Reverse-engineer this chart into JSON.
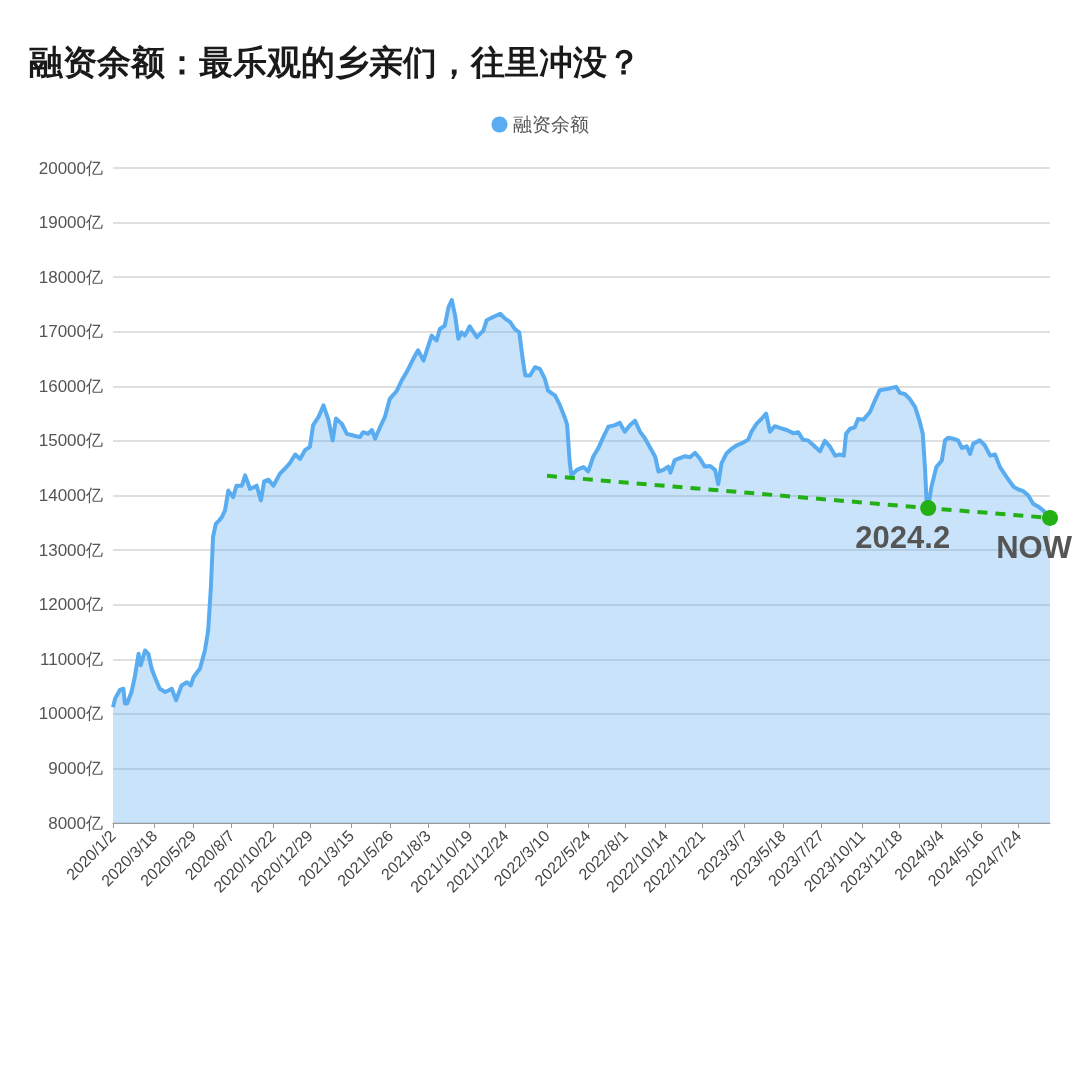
{
  "chart_data": {
    "type": "area",
    "title": "融资余额：最乐观的乡亲们，往里冲没？",
    "legend": "top",
    "grid": "y",
    "marker": "none",
    "xlim": [
      "2020-01-02",
      "2024-09-20"
    ],
    "xticks": [
      {
        "value": "2020-01-02",
        "label": "2020/1/2"
      },
      {
        "value": "2020-03-18",
        "label": "2020/3/18"
      },
      {
        "value": "2020-05-29",
        "label": "2020/5/29"
      },
      {
        "value": "2020-08-07",
        "label": "2020/8/7"
      },
      {
        "value": "2020-10-22",
        "label": "2020/10/22"
      },
      {
        "value": "2020-12-29",
        "label": "2020/12/29"
      },
      {
        "value": "2021-03-15",
        "label": "2021/3/15"
      },
      {
        "value": "2021-05-26",
        "label": "2021/5/26"
      },
      {
        "value": "2021-08-03",
        "label": "2021/8/3"
      },
      {
        "value": "2021-10-19",
        "label": "2021/10/19"
      },
      {
        "value": "2021-12-24",
        "label": "2021/12/24"
      },
      {
        "value": "2022-03-10",
        "label": "2022/3/10"
      },
      {
        "value": "2022-05-24",
        "label": "2022/5/24"
      },
      {
        "value": "2022-08-01",
        "label": "2022/8/1"
      },
      {
        "value": "2022-10-14",
        "label": "2022/10/14"
      },
      {
        "value": "2022-12-21",
        "label": "2022/12/21"
      },
      {
        "value": "2023-03-07",
        "label": "2023/3/7"
      },
      {
        "value": "2023-05-18",
        "label": "2023/5/18"
      },
      {
        "value": "2023-07-27",
        "label": "2023/7/27"
      },
      {
        "value": "2023-10-11",
        "label": "2023/10/11"
      },
      {
        "value": "2023-12-18",
        "label": "2023/12/18"
      },
      {
        "value": "2024-03-04",
        "label": "2024/3/4"
      },
      {
        "value": "2024-05-16",
        "label": "2024/5/16"
      },
      {
        "value": "2024-07-24",
        "label": "2024/7/24"
      }
    ],
    "ylim": [
      8000,
      20000
    ],
    "yticks": [
      {
        "value": 8000,
        "label": "8000亿"
      },
      {
        "value": 9000,
        "label": "9000亿"
      },
      {
        "value": 10000,
        "label": "10000亿"
      },
      {
        "value": 11000,
        "label": "11000亿"
      },
      {
        "value": 12000,
        "label": "12000亿"
      },
      {
        "value": 13000,
        "label": "13000亿"
      },
      {
        "value": 14000,
        "label": "14000亿"
      },
      {
        "value": 15000,
        "label": "15000亿"
      },
      {
        "value": 16000,
        "label": "16000亿"
      },
      {
        "value": 17000,
        "label": "17000亿"
      },
      {
        "value": 18000,
        "label": "18000亿"
      },
      {
        "value": 19000,
        "label": "19000亿"
      },
      {
        "value": 20000,
        "label": "20000亿"
      }
    ],
    "x": [
      "2020-01-02",
      "2020-01-06",
      "2020-01-15",
      "2020-01-21",
      "2020-01-24",
      "2020-01-28",
      "2020-02-05",
      "2020-02-11",
      "2020-02-18",
      "2020-02-22",
      "2020-03-01",
      "2020-03-07",
      "2020-03-13",
      "2020-03-19",
      "2020-03-28",
      "2020-04-07",
      "2020-04-19",
      "2020-04-27",
      "2020-05-07",
      "2020-05-17",
      "2020-05-24",
      "2020-05-29",
      "2020-06-10",
      "2020-06-19",
      "2020-06-25",
      "2020-06-30",
      "2020-07-04",
      "2020-07-09",
      "2020-07-15",
      "2020-07-20",
      "2020-07-26",
      "2020-08-01",
      "2020-08-10",
      "2020-08-16",
      "2020-08-26",
      "2020-09-01",
      "2020-09-10",
      "2020-09-22",
      "2020-09-30",
      "2020-10-06",
      "2020-10-14",
      "2020-10-23",
      "2020-11-04",
      "2020-11-13",
      "2020-11-22",
      "2020-12-02",
      "2020-12-11",
      "2020-12-20",
      "2020-12-29",
      "2021-01-04",
      "2021-01-14",
      "2021-01-23",
      "2021-02-01",
      "2021-02-09",
      "2021-02-15",
      "2021-02-26",
      "2021-03-07",
      "2021-03-19",
      "2021-03-31",
      "2021-04-06",
      "2021-04-15",
      "2021-04-22",
      "2021-04-28",
      "2021-05-07",
      "2021-05-16",
      "2021-05-25",
      "2021-06-07",
      "2021-06-16",
      "2021-06-25",
      "2021-07-07",
      "2021-07-16",
      "2021-07-26",
      "2021-08-01",
      "2021-08-10",
      "2021-08-19",
      "2021-08-25",
      "2021-09-03",
      "2021-09-10",
      "2021-09-16",
      "2021-09-22",
      "2021-09-28",
      "2021-10-04",
      "2021-10-10",
      "2021-10-19",
      "2021-11-01",
      "2021-11-13",
      "2021-11-19",
      "2021-12-01",
      "2021-12-14",
      "2021-12-23",
      "2022-01-01",
      "2022-01-10",
      "2022-01-18",
      "2022-01-24",
      "2022-01-29",
      "2022-02-07",
      "2022-02-16",
      "2022-02-25",
      "2022-03-06",
      "2022-03-12",
      "2022-03-25",
      "2022-04-03",
      "2022-04-12",
      "2022-04-16",
      "2022-04-21",
      "2022-04-24",
      "2022-05-04",
      "2022-05-16",
      "2022-05-25",
      "2022-06-03",
      "2022-06-12",
      "2022-06-22",
      "2022-07-01",
      "2022-07-13",
      "2022-07-22",
      "2022-07-31",
      "2022-08-10",
      "2022-08-19",
      "2022-08-28",
      "2022-09-06",
      "2022-09-15",
      "2022-09-25",
      "2022-10-01",
      "2022-10-10",
      "2022-10-19",
      "2022-10-23",
      "2022-10-31",
      "2022-11-19",
      "2022-11-28",
      "2022-12-07",
      "2022-12-16",
      "2022-12-25",
      "2023-01-04",
      "2023-01-13",
      "2023-01-19",
      "2023-01-25",
      "2023-02-03",
      "2023-02-13",
      "2023-02-22",
      "2023-03-06",
      "2023-03-15",
      "2023-03-21",
      "2023-03-31",
      "2023-04-09",
      "2023-04-17",
      "2023-04-24",
      "2023-05-03",
      "2023-05-12",
      "2023-05-25",
      "2023-06-06",
      "2023-06-15",
      "2023-06-24",
      "2023-07-03",
      "2023-07-13",
      "2023-07-25",
      "2023-08-03",
      "2023-08-12",
      "2023-08-22",
      "2023-08-31",
      "2023-09-07",
      "2023-09-11",
      "2023-09-18",
      "2023-09-27",
      "2023-10-03",
      "2023-10-13",
      "2023-10-25",
      "2023-11-03",
      "2023-11-12",
      "2023-11-25",
      "2023-12-12",
      "2023-12-19",
      "2023-12-28",
      "2024-01-06",
      "2024-01-16",
      "2024-01-24",
      "2024-01-30",
      "2024-02-03",
      "2024-02-06",
      "2024-02-09",
      "2024-02-15",
      "2024-02-24",
      "2024-03-05",
      "2024-03-11",
      "2024-03-17",
      "2024-03-26",
      "2024-04-04",
      "2024-04-11",
      "2024-04-20",
      "2024-04-26",
      "2024-05-02",
      "2024-05-14",
      "2024-05-23",
      "2024-06-02",
      "2024-06-11",
      "2024-06-20",
      "2024-07-02",
      "2024-07-15",
      "2024-07-24",
      "2024-08-02",
      "2024-08-11",
      "2024-08-20",
      "2024-08-29",
      "2024-09-07",
      "2024-09-13",
      "2024-09-20"
    ],
    "series": [
      {
        "name": "融资余额",
        "color": "#5aacf0",
        "values": [
          10120,
          10280,
          10440,
          10460,
          10190,
          10190,
          10400,
          10670,
          11100,
          10890,
          11160,
          11100,
          10830,
          10670,
          10460,
          10400,
          10460,
          10250,
          10520,
          10580,
          10520,
          10670,
          10830,
          11160,
          11530,
          12320,
          13240,
          13480,
          13540,
          13600,
          13730,
          14090,
          13970,
          14180,
          14180,
          14370,
          14120,
          14180,
          13910,
          14260,
          14290,
          14180,
          14400,
          14490,
          14590,
          14750,
          14670,
          14830,
          14890,
          15290,
          15440,
          15650,
          15390,
          15010,
          15410,
          15310,
          15130,
          15100,
          15070,
          15160,
          15130,
          15200,
          15040,
          15250,
          15440,
          15770,
          15920,
          16110,
          16260,
          16500,
          16660,
          16470,
          16660,
          16930,
          16840,
          17050,
          17110,
          17450,
          17580,
          17300,
          16870,
          16990,
          16930,
          17100,
          16900,
          17020,
          17210,
          17270,
          17330,
          17240,
          17180,
          17050,
          16990,
          16530,
          16200,
          16200,
          16350,
          16320,
          16140,
          15920,
          15830,
          15650,
          15420,
          15300,
          14590,
          14370,
          14470,
          14520,
          14440,
          14710,
          14860,
          15080,
          15260,
          15290,
          15330,
          15170,
          15290,
          15370,
          15170,
          15050,
          14890,
          14710,
          14440,
          14470,
          14530,
          14420,
          14650,
          14720,
          14700,
          14780,
          14680,
          14530,
          14540,
          14470,
          14210,
          14590,
          14770,
          14860,
          14920,
          14970,
          15020,
          15170,
          15320,
          15410,
          15500,
          15170,
          15270,
          15240,
          15200,
          15140,
          15160,
          15020,
          15010,
          14920,
          14810,
          15000,
          14900,
          14730,
          14750,
          14730,
          15130,
          15220,
          15250,
          15400,
          15390,
          15530,
          15740,
          15930,
          15950,
          15990,
          15880,
          15860,
          15770,
          15620,
          15370,
          15130,
          14520,
          13910,
          13780,
          14160,
          14520,
          14640,
          15010,
          15060,
          15040,
          15010,
          14870,
          14900,
          14760,
          14950,
          15010,
          14920,
          14730,
          14750,
          14520,
          14340,
          14160,
          14110,
          14080,
          14000,
          13850,
          13800,
          13730,
          13670,
          13590
        ]
      },
      {
        "type": "line",
        "color": "#22b014",
        "line_style": "dashed",
        "x": [
          "2022-03-10",
          "2024-02-09",
          "2024-09-20"
        ],
        "values": [
          14360,
          13770,
          13590
        ]
      },
      {
        "type": "scatter",
        "color": "#22b014",
        "marker": "circle",
        "x": [
          "2024-02-09",
          "2024-09-20"
        ],
        "values": [
          13770,
          13590
        ]
      }
    ],
    "annotations": [
      {
        "text": "2024.2",
        "x": "2024-02-09",
        "y": 13770
      },
      {
        "text": "NOW",
        "x": "2024-09-20",
        "y": 13590
      }
    ]
  }
}
